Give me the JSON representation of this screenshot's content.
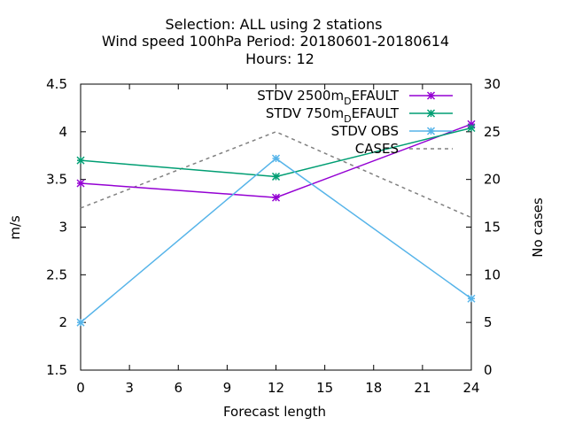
{
  "chart_data": {
    "type": "line",
    "title_lines": [
      "Selection: ALL using     2 stations",
      "Wind speed 100hPa   Period: 20180601-20180614",
      "Hours:  12"
    ],
    "xlabel": "Forecast length",
    "ylabel": "m/s",
    "y2label": "No cases",
    "xlim": [
      0,
      24
    ],
    "ylim": [
      1.5,
      4.5
    ],
    "y2lim": [
      0,
      30
    ],
    "x_ticks": [
      0,
      3,
      6,
      9,
      12,
      15,
      18,
      21,
      24
    ],
    "y_ticks": [
      "1.5",
      "2",
      "2.5",
      "3",
      "3.5",
      "4",
      "4.5"
    ],
    "y2_ticks": [
      0,
      5,
      10,
      15,
      20,
      25,
      30
    ],
    "legend_position": "top-right",
    "grid": false,
    "series": [
      {
        "name": "STDV 2500m",
        "name_sub": "D",
        "name_tail": "EFAULT",
        "color": "#9400d3",
        "axis": "y1",
        "style": "solid-marker",
        "x": [
          0,
          12,
          24
        ],
        "y": [
          3.46,
          3.31,
          4.08
        ]
      },
      {
        "name": "STDV 750m",
        "name_sub": "D",
        "name_tail": "EFAULT",
        "color": "#009e73",
        "axis": "y1",
        "style": "solid-marker",
        "x": [
          0,
          12,
          24
        ],
        "y": [
          3.7,
          3.53,
          4.04
        ]
      },
      {
        "name": "STDV OBS",
        "name_sub": "",
        "name_tail": "",
        "color": "#56b4e9",
        "axis": "y1",
        "style": "solid-marker",
        "x": [
          0,
          12,
          24
        ],
        "y": [
          2.0,
          3.72,
          2.25
        ]
      },
      {
        "name": "CASES",
        "name_sub": "",
        "name_tail": "",
        "color": "#808080",
        "axis": "y2",
        "style": "dashed",
        "x": [
          0,
          12,
          24
        ],
        "y": [
          17,
          25,
          16
        ]
      }
    ]
  }
}
